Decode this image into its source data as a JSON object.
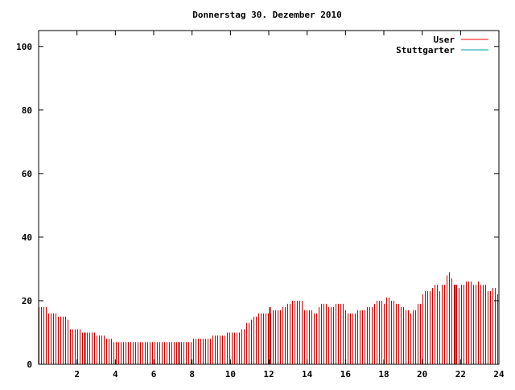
{
  "chart_data": {
    "type": "bar",
    "title": "Donnerstag 30. Dezember 2010",
    "xlabel": "",
    "ylabel": "",
    "xlim": [
      0,
      24
    ],
    "ylim": [
      0,
      105
    ],
    "xticks": [
      2,
      4,
      6,
      8,
      10,
      12,
      14,
      16,
      18,
      20,
      22,
      24
    ],
    "yticks": [
      0,
      20,
      40,
      60,
      80,
      100
    ],
    "xtick_labels": [
      "2",
      "4",
      "6",
      "8",
      "10",
      "12",
      "14",
      "16",
      "18",
      "20",
      "22",
      "24"
    ],
    "ytick_labels": [
      "0",
      "20",
      "40",
      "60",
      "80",
      "100"
    ],
    "grid": false,
    "legend_position": "top-right",
    "legend": [
      {
        "name": "User",
        "color": "#ff0000"
      },
      {
        "name": "Stuttgarter",
        "color": "#00a0a0"
      }
    ],
    "series": [
      {
        "name": "User",
        "color": "#cc0000",
        "style": "impulses",
        "points": [
          [
            0.0,
            18
          ],
          [
            0.5,
            16
          ],
          [
            1.0,
            15
          ],
          [
            1.5,
            14
          ],
          [
            1.6,
            11
          ],
          [
            2.1,
            11
          ],
          [
            2.2,
            10
          ],
          [
            2.8,
            10
          ],
          [
            2.9,
            9
          ],
          [
            3.3,
            9
          ],
          [
            3.4,
            8
          ],
          [
            3.8,
            8
          ],
          [
            3.9,
            7
          ],
          [
            5.0,
            7
          ],
          [
            7.5,
            7
          ],
          [
            7.9,
            7
          ],
          [
            8.0,
            8
          ],
          [
            8.9,
            8
          ],
          [
            9.0,
            9
          ],
          [
            9.7,
            9
          ],
          [
            9.8,
            10
          ],
          [
            10.3,
            10
          ],
          [
            10.5,
            11
          ],
          [
            10.8,
            13
          ],
          [
            11.0,
            14
          ],
          [
            11.2,
            15
          ],
          [
            11.4,
            16
          ],
          [
            11.9,
            16
          ],
          [
            12.1,
            17
          ],
          [
            12.5,
            17
          ],
          [
            12.7,
            18
          ],
          [
            12.9,
            19
          ],
          [
            13.2,
            20
          ],
          [
            13.7,
            20
          ],
          [
            13.8,
            17
          ],
          [
            14.2,
            17
          ],
          [
            14.3,
            16
          ],
          [
            14.5,
            18
          ],
          [
            14.7,
            19
          ],
          [
            15.0,
            18
          ],
          [
            15.4,
            19
          ],
          [
            15.7,
            19
          ],
          [
            15.9,
            17
          ],
          [
            16.1,
            16
          ],
          [
            16.4,
            16
          ],
          [
            16.5,
            17
          ],
          [
            16.9,
            17
          ],
          [
            17.1,
            18
          ],
          [
            17.4,
            19
          ],
          [
            17.6,
            20
          ],
          [
            17.9,
            19
          ],
          [
            18.1,
            21
          ],
          [
            18.3,
            20
          ],
          [
            18.5,
            20
          ],
          [
            18.6,
            19
          ],
          [
            18.8,
            18
          ],
          [
            19.1,
            17
          ],
          [
            19.3,
            16
          ],
          [
            19.5,
            17
          ],
          [
            19.7,
            19
          ],
          [
            19.9,
            22
          ],
          [
            20.1,
            23
          ],
          [
            20.4,
            24
          ],
          [
            20.6,
            25
          ],
          [
            20.8,
            23
          ],
          [
            21.0,
            25
          ],
          [
            21.2,
            28
          ],
          [
            21.3,
            29
          ],
          [
            21.4,
            27
          ],
          [
            21.6,
            25
          ],
          [
            21.8,
            24
          ],
          [
            22.0,
            25
          ],
          [
            22.2,
            26
          ],
          [
            22.4,
            26
          ],
          [
            22.6,
            25
          ],
          [
            22.8,
            26
          ],
          [
            23.0,
            25
          ],
          [
            23.2,
            25
          ],
          [
            23.4,
            23
          ],
          [
            23.6,
            24
          ],
          [
            23.8,
            23
          ],
          [
            23.9,
            22
          ],
          [
            24.0,
            22
          ]
        ]
      },
      {
        "name": "Stuttgarter",
        "color": "#00a0a0",
        "style": "impulses",
        "points": []
      }
    ],
    "highlight_lines": [
      {
        "x": 2.4,
        "value": 10
      },
      {
        "x": 7.3,
        "value": 7
      },
      {
        "x": 12.05,
        "value": 18
      },
      {
        "x": 21.7,
        "value": 25
      }
    ]
  }
}
